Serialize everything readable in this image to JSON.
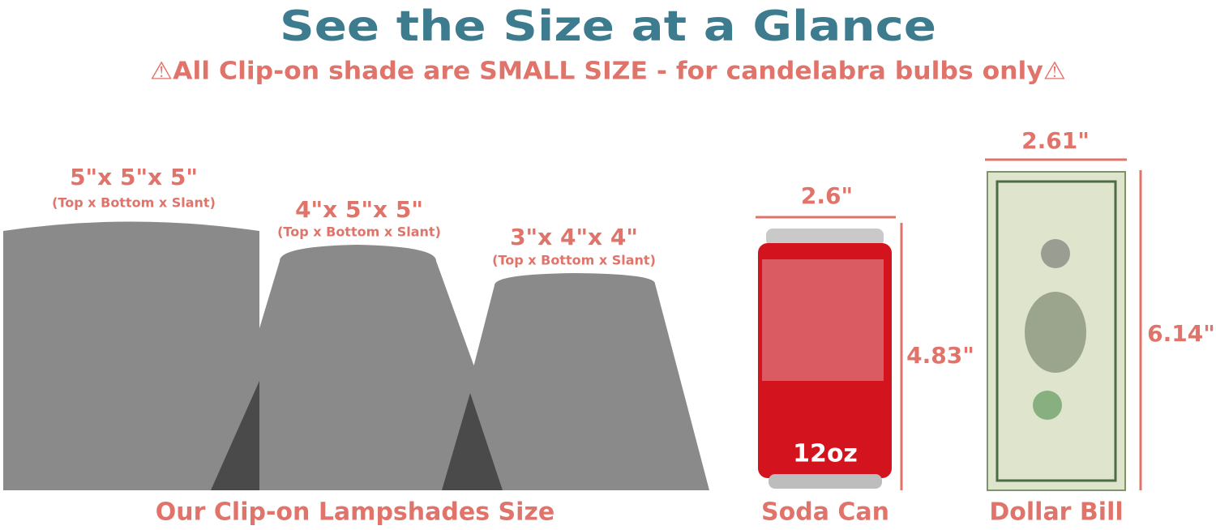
{
  "header": {
    "title": "See the Size at a Glance",
    "subtitle": "⚠All Clip-on shade are SMALL SIZE  - for candelabra bulbs only⚠"
  },
  "shades": [
    {
      "size": "5\"x 5\"x 5\"",
      "note": "(Top x Bottom x Slant)"
    },
    {
      "size": "4\"x 5\"x 5\"",
      "note": "(Top x Bottom x Slant)"
    },
    {
      "size": "3\"x 4\"x 4\"",
      "note": "(Top x Bottom x Slant)"
    }
  ],
  "shades_caption": "Our Clip-on Lampshades Size",
  "soda_can": {
    "width": "2.6\"",
    "height": "4.83\"",
    "label": "12oz",
    "caption": "Soda Can"
  },
  "dollar_bill": {
    "width": "2.61\"",
    "height": "6.14\"",
    "caption": "Dollar Bill"
  }
}
